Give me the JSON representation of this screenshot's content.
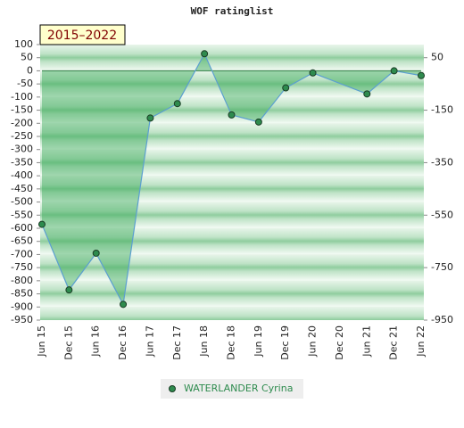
{
  "chart_data": {
    "type": "line",
    "title": "WOF ratinglist",
    "annotation": "2015–2022",
    "categories": [
      "Jun 15",
      "Dec 15",
      "Jun 16",
      "Dec 16",
      "Jun 17",
      "Dec 17",
      "Jun 18",
      "Dec 18",
      "Jun 19",
      "Dec 19",
      "Jun 20",
      "Dec 20",
      "Jun 21",
      "Dec 21",
      "Jun 22"
    ],
    "series": [
      {
        "name": "WATERLANDER Cyrina",
        "color": "#2e8b4e",
        "line_color": "#5b9fd0",
        "x": [
          "Jun 15",
          "Dec 15",
          "Jun 16",
          "Dec 16",
          "Jun 17",
          "Dec 17",
          "Jun 18",
          "Dec 18",
          "Jun 19",
          "Dec 19",
          "Jun 20",
          "Jun 21",
          "Dec 21",
          "Jun 22"
        ],
        "values": [
          -585,
          -835,
          -695,
          -890,
          -180,
          -125,
          65,
          -168,
          -195,
          -65,
          -8,
          -88,
          0,
          -18
        ]
      }
    ],
    "ylim": [
      -950,
      100
    ],
    "yticks": [
      100,
      50,
      0,
      -50,
      -100,
      -150,
      -200,
      -250,
      -300,
      -350,
      -400,
      -450,
      -500,
      -550,
      -600,
      -650,
      -700,
      -750,
      -800,
      -850,
      -900,
      -950
    ],
    "y2lim": [
      -950,
      100
    ],
    "y2ticks": [
      50,
      -150,
      -350,
      -550,
      -750,
      -950
    ]
  }
}
